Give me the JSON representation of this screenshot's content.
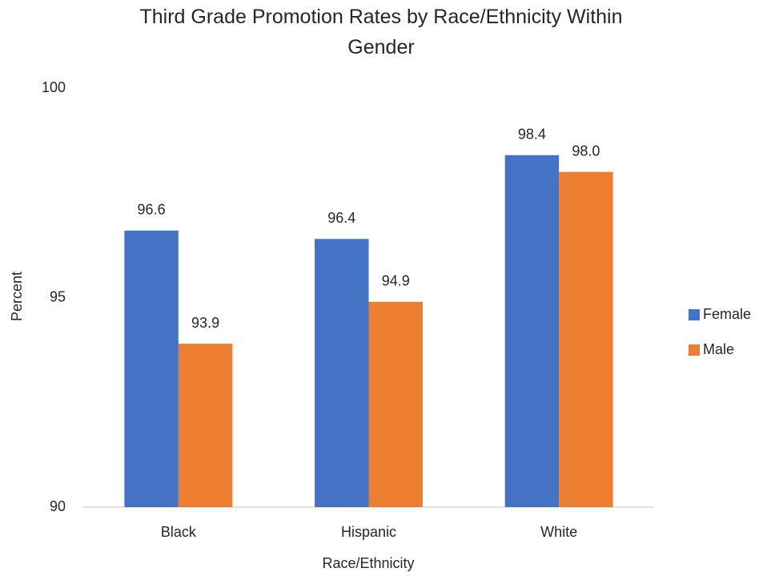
{
  "chart_data": {
    "type": "bar",
    "title": "Third Grade Promotion Rates by Race/Ethnicity Within Gender",
    "x_label": "Race/Ethnicity",
    "y_label": "Percent",
    "categories": [
      "Black",
      "Hispanic",
      "White"
    ],
    "series": [
      {
        "name": "Female",
        "color": "#4472c4",
        "values": [
          96.6,
          96.4,
          98.4
        ],
        "value_labels": [
          "96.6",
          "96.4",
          "98.4"
        ]
      },
      {
        "name": "Male",
        "color": "#ed7d31",
        "values": [
          93.9,
          94.9,
          98.0
        ],
        "value_labels": [
          "93.9",
          "94.9",
          "98.0"
        ]
      }
    ],
    "ylim": [
      90,
      100
    ],
    "yticks": [
      90,
      95,
      100
    ],
    "grid": false,
    "legend": "right"
  }
}
